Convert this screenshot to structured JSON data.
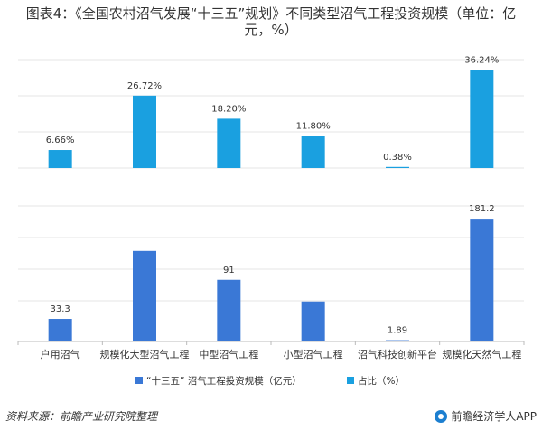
{
  "title_lines": [
    "图表4：《全国农村沼气发展“十三五”规划》不同类型沼气工程投资规模（单位：亿",
    "元，%）"
  ],
  "source": "资料来源：前瞻产业研究院整理",
  "brand": "前瞻经济学人APP",
  "colors": {
    "investment": "#3a78d6",
    "share": "#1aa0e0",
    "grid": "#e6e6e6",
    "axis": "#bbbbbb"
  },
  "chart_data": {
    "type": "bar",
    "categories": [
      "户用沼气",
      "规模化大型沼气工程",
      "中型沼气工程",
      "小型沼气工程",
      "沼气科技创新平台",
      "规模化天然气工程"
    ],
    "series": [
      {
        "name": "占比（%）",
        "values": [
          6.66,
          26.72,
          18.2,
          11.8,
          0.38,
          36.24
        ],
        "labels": [
          "6.66%",
          "26.72%",
          "18.20%",
          "11.80%",
          "0.38%",
          "36.24%"
        ]
      },
      {
        "name": "“十三五” 沼气工程投资规模（亿元）",
        "values": [
          33.3,
          133.6,
          91,
          59,
          1.89,
          181.2
        ],
        "labels": [
          "33.3",
          "",
          "91",
          "",
          "1.89",
          "181.2"
        ]
      }
    ],
    "legend": [
      "“十三五” 沼气工程投资规模（亿元）",
      "占比（%）"
    ]
  }
}
